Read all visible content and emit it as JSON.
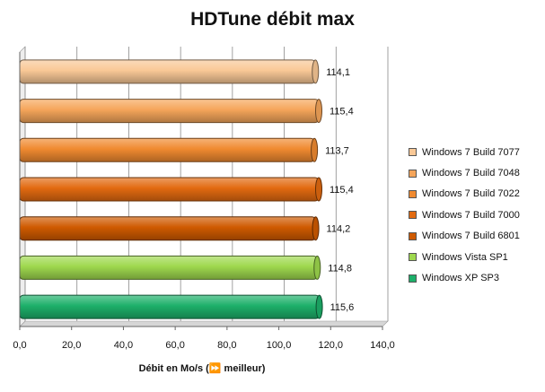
{
  "chart_data": {
    "type": "bar",
    "orientation": "horizontal",
    "title": "HDTune débit max",
    "xlabel": "Débit en Mo/s (⏩ meilleur)",
    "ylabel": "",
    "xlim": [
      0,
      140
    ],
    "ticks": [
      "0,0",
      "20,0",
      "40,0",
      "60,0",
      "80,0",
      "100,0",
      "120,0",
      "140,0"
    ],
    "grid": true,
    "legend_position": "right",
    "series": [
      {
        "name": "Windows 7 Build 7077",
        "value": 114.1,
        "label": "114,1",
        "color": "#f9c896"
      },
      {
        "name": "Windows 7 Build 7048",
        "value": 115.4,
        "label": "115,4",
        "color": "#f5a55a"
      },
      {
        "name": "Windows 7 Build 7022",
        "value": 113.7,
        "label": "113,7",
        "color": "#f08a30"
      },
      {
        "name": "Windows 7 Build 7000",
        "value": 115.4,
        "label": "115,4",
        "color": "#e26a10"
      },
      {
        "name": "Windows 7 Build 6801",
        "value": 114.2,
        "label": "114,2",
        "color": "#cf5a00"
      },
      {
        "name": "Windows Vista SP1",
        "value": 114.8,
        "label": "114,8",
        "color": "#9ed84e"
      },
      {
        "name": "Windows XP SP3",
        "value": 115.6,
        "label": "115,6",
        "color": "#1db06a"
      }
    ]
  }
}
